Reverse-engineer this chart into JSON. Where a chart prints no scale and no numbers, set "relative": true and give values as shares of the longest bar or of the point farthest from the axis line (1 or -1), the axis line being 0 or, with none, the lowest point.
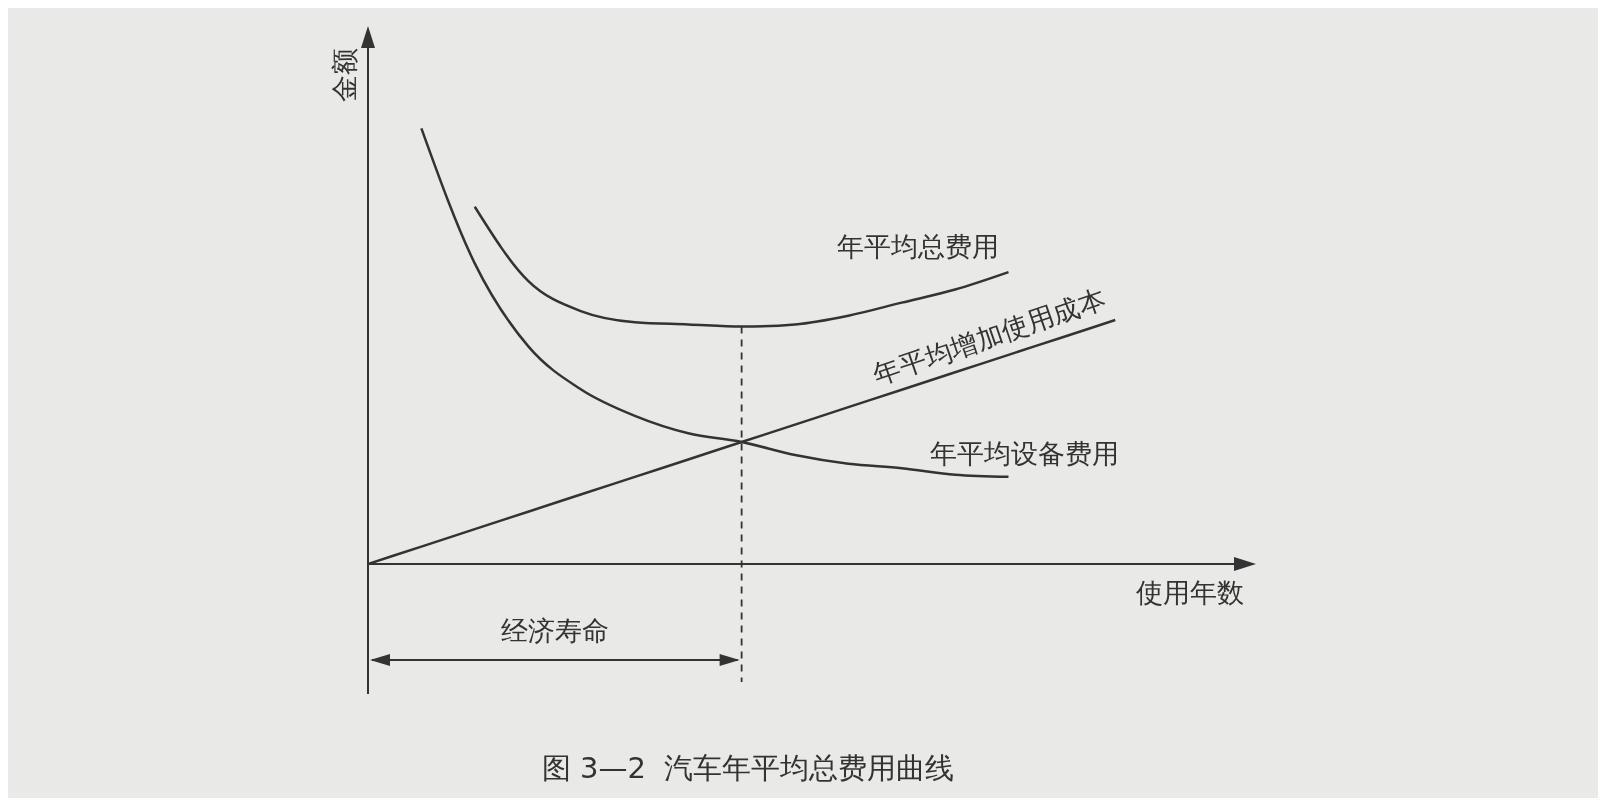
{
  "chart_data": {
    "type": "line",
    "relative": true,
    "title": "图 3—2  汽车年平均总费用曲线",
    "xlabel": "使用年数",
    "ylabel": "金额",
    "categories": [
      null,
      null,
      null,
      null,
      null,
      null,
      null,
      null,
      null,
      null,
      null,
      null,
      null,
      null,
      null,
      null,
      null
    ],
    "series": [
      {
        "name": "年平均总费用",
        "color": "#333333",
        "values": [
          null,
          null,
          0.82,
          0.65,
          0.58,
          0.555,
          0.55,
          0.545,
          0.55,
          0.57,
          0.6,
          0.63,
          0.67,
          null,
          null,
          null,
          null
        ]
      },
      {
        "name": "年平均增加使用成本",
        "color": "#333333",
        "values": [
          0,
          0.04,
          0.08,
          0.12,
          0.16,
          0.2,
          0.24,
          0.28,
          0.32,
          0.36,
          0.4,
          0.44,
          0.48,
          0.52,
          0.56,
          null,
          null
        ]
      },
      {
        "name": "年平均设备费用",
        "color": "#333333",
        "values": [
          null,
          1,
          0.69,
          0.5,
          0.4,
          0.34,
          0.3,
          0.28,
          0.25,
          0.23,
          0.22,
          0.205,
          0.2,
          null,
          null,
          null,
          null
        ]
      }
    ],
    "annotations": [
      "经济寿命"
    ],
    "grid": false,
    "legend": false,
    "marker": "none",
    "line_style": "solid"
  }
}
